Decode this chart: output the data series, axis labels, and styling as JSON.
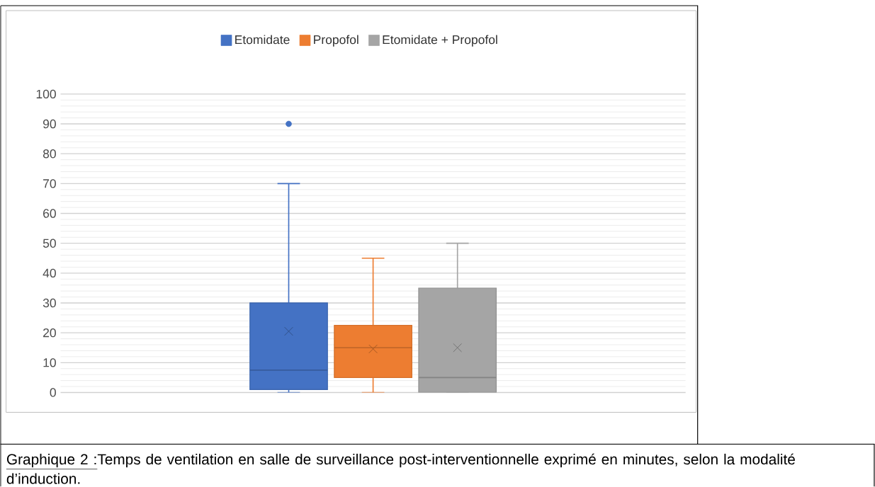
{
  "chart_data": {
    "type": "box",
    "categories": [
      null
    ],
    "series": [
      {
        "name": "Etomidate",
        "color": "#4472c4",
        "boxes": [
          {
            "low": 0,
            "q1": 1,
            "median": 7.5,
            "q3": 30,
            "high": 70,
            "mean": 20.5,
            "outliers": [
              90
            ]
          }
        ]
      },
      {
        "name": "Propofol",
        "color": "#ed7d31",
        "boxes": [
          {
            "low": 0,
            "q1": 5,
            "median": 15,
            "q3": 22.5,
            "high": 45,
            "mean": 14.6
          }
        ]
      },
      {
        "name": "Etomidate + Propofol",
        "color": "#a5a5a5",
        "boxes": [
          {
            "low": 0,
            "q1": 0,
            "median": 5,
            "q3": 35,
            "high": 50,
            "mean": 15
          }
        ]
      }
    ],
    "ylim": [
      0,
      100
    ],
    "yticks": [
      0,
      10,
      20,
      30,
      40,
      50,
      60,
      70,
      80,
      90,
      100
    ],
    "grid": "y",
    "legend": "top",
    "marker": "cross",
    "annotations": [
      "Graphique 2 :",
      "Temps de ventilation en salle de surveillance post-interventionnelle exprimé en minutes, selon la modalité d’induction."
    ]
  }
}
